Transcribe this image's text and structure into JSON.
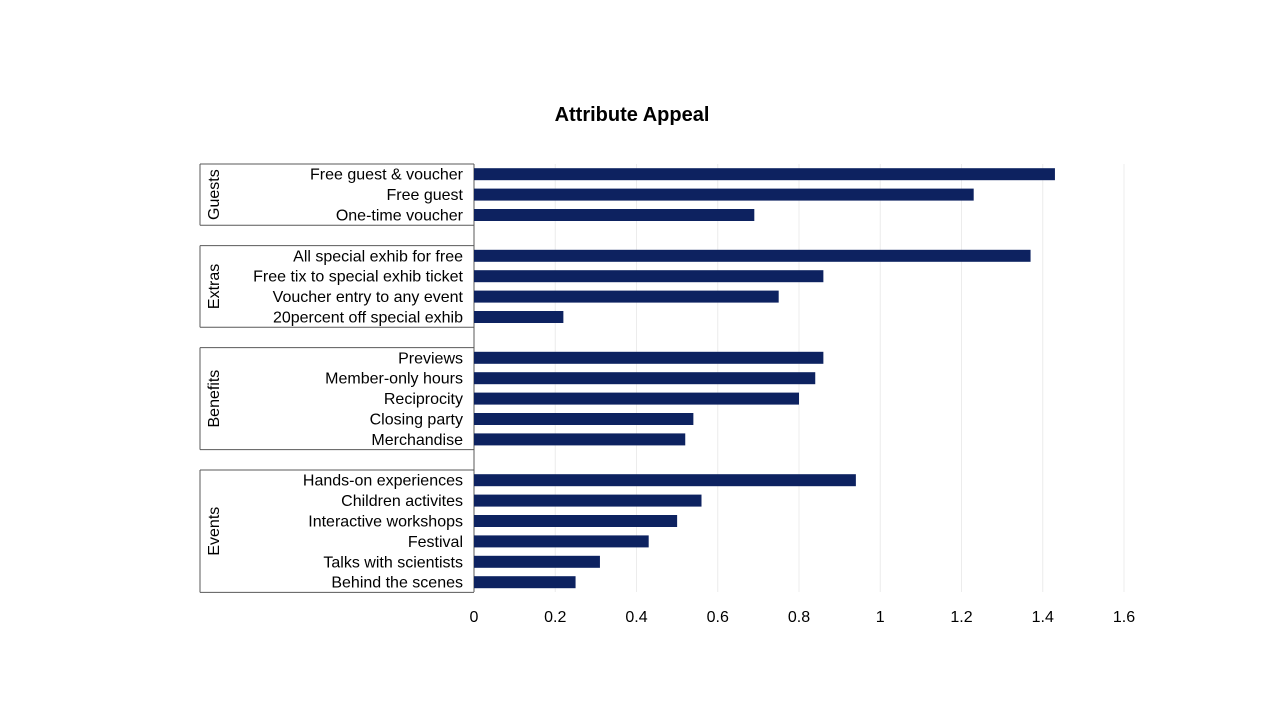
{
  "chart_data": {
    "type": "bar",
    "orientation": "horizontal",
    "title": "Attribute Appeal",
    "xlabel": "",
    "ylabel": "",
    "xlim": [
      0,
      1.6
    ],
    "xticks": [
      "0",
      "0.2",
      "0.4",
      "0.6",
      "0.8",
      "1",
      "1.2",
      "1.4",
      "1.6"
    ],
    "grid": true,
    "bar_color": "#0d2260",
    "groups": [
      {
        "name": "Guests",
        "categories": [
          "Free guest & voucher",
          "Free guest",
          "One-time voucher"
        ],
        "values": [
          1.43,
          1.23,
          0.69
        ]
      },
      {
        "name": "Extras",
        "categories": [
          "All special exhib for free",
          "Free tix to special exhib ticket",
          "Voucher entry to any event",
          "20percent off special exhib"
        ],
        "values": [
          1.37,
          0.86,
          0.75,
          0.22
        ]
      },
      {
        "name": "Benefits",
        "categories": [
          "Previews",
          "Member-only hours",
          "Reciprocity",
          "Closing party",
          "Merchandise"
        ],
        "values": [
          0.86,
          0.84,
          0.8,
          0.54,
          0.52
        ]
      },
      {
        "name": "Events",
        "categories": [
          "Hands-on experiences",
          "Children activites",
          "Interactive workshops",
          "Festival",
          "Talks with scientists",
          "Behind the scenes"
        ],
        "values": [
          0.94,
          0.56,
          0.5,
          0.43,
          0.31,
          0.25
        ]
      }
    ]
  }
}
